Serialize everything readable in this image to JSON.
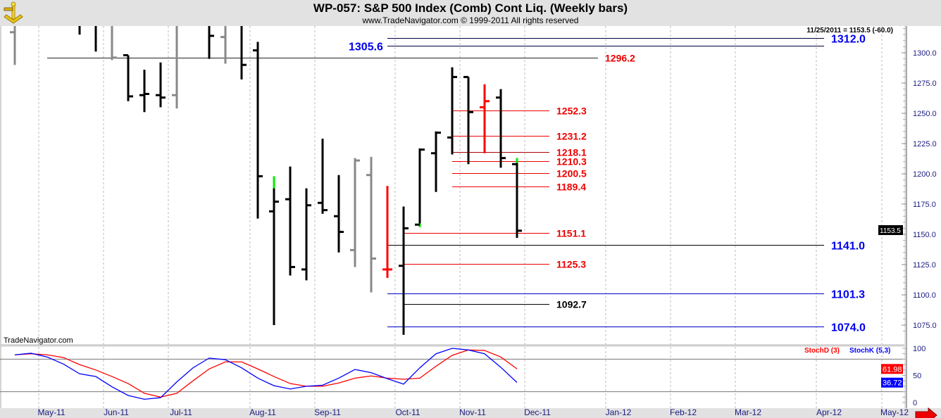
{
  "header": {
    "title": "WP-057:  S&P 500 Index (Comb) Cont Liq.  (Weekly bars)",
    "subtitle": "www.TradeNavigator.com © 1999-2011 All rights reserved",
    "last_bar_readout": "11/25/2011 = 1153.5 (-60.0)",
    "watermark": "TradeNavigator.com"
  },
  "chart_data": [
    {
      "type": "ohlc",
      "title": "S&P 500 Index (Comb) Cont Liq. (Weekly bars)",
      "ylim": [
        1062,
        1322
      ],
      "y_ticks": [
        "1300.0",
        "1275.0",
        "1250.0",
        "1225.0",
        "1200.0",
        "1175.0",
        "1150.0",
        "1125.0",
        "1100.0",
        "1075.0"
      ],
      "y_tick_values": [
        1300,
        1275,
        1250,
        1225,
        1200,
        1175,
        1150,
        1125,
        1100,
        1075
      ],
      "x_labels": [
        "May-11",
        "Jun-11",
        "Jul-11",
        "Aug-11",
        "Sep-11",
        "Oct-11",
        "Nov-11",
        "Dec-11",
        "Jan-12",
        "Feb-12",
        "Mar-12",
        "Apr-12",
        "May-12"
      ],
      "last_price": "1153.5",
      "bars": [
        {
          "week": 0,
          "o": 1317,
          "h": 1330,
          "l": 1290,
          "c": null,
          "color": "gray"
        },
        {
          "week": 4,
          "o": null,
          "h": 1330,
          "l": 1315,
          "c": null,
          "color": "black"
        },
        {
          "week": 5,
          "o": null,
          "h": 1330,
          "l": 1301,
          "c": null,
          "color": "black"
        },
        {
          "week": 6,
          "o": null,
          "h": 1330,
          "l": 1294,
          "c": 1296,
          "color": "gray"
        },
        {
          "week": 7,
          "o": 1298,
          "h": 1298,
          "l": 1260,
          "c": 1264,
          "color": "black"
        },
        {
          "week": 8,
          "o": 1265,
          "h": 1286,
          "l": 1251,
          "c": 1266,
          "color": "black"
        },
        {
          "week": 9,
          "o": 1265,
          "h": 1292,
          "l": 1255,
          "c": 1263,
          "color": "black"
        },
        {
          "week": 10,
          "o": 1265,
          "h": 1330,
          "l": 1254,
          "c": null,
          "color": "gray"
        },
        {
          "week": 12,
          "o": null,
          "h": 1330,
          "l": 1295,
          "c": 1314,
          "color": "black"
        },
        {
          "week": 13,
          "o": 1313,
          "h": 1330,
          "l": 1291,
          "c": null,
          "color": "gray"
        },
        {
          "week": 14,
          "o": null,
          "h": 1330,
          "l": 1278,
          "c": 1290,
          "color": "black"
        },
        {
          "week": 15,
          "o": 1302,
          "h": 1309,
          "l": 1163,
          "c": 1198,
          "color": "black"
        },
        {
          "week": 16,
          "o": 1169,
          "h": 1198,
          "l": 1075,
          "c": 1177,
          "color": "black",
          "hl_top": 1188
        },
        {
          "week": 17,
          "o": 1179,
          "h": 1206,
          "l": 1116,
          "c": 1123,
          "color": "black"
        },
        {
          "week": 18,
          "o": 1121,
          "h": 1188,
          "l": 1112,
          "c": 1174,
          "color": "black"
        },
        {
          "week": 19,
          "o": 1176,
          "h": 1229,
          "l": 1167,
          "c": 1170,
          "color": "black"
        },
        {
          "week": 20,
          "o": 1165,
          "h": 1199,
          "l": 1135,
          "c": 1152,
          "color": "black"
        },
        {
          "week": 21,
          "o": 1137,
          "h": 1213,
          "l": 1123,
          "c": 1211,
          "color": "gray"
        },
        {
          "week": 22,
          "o": 1199,
          "h": 1214,
          "l": 1102,
          "c": 1130,
          "color": "gray"
        },
        {
          "week": 23,
          "o": 1121,
          "h": 1190,
          "l": 1114,
          "c": 1121,
          "color": "red"
        },
        {
          "week": 24,
          "o": 1124,
          "h": 1173,
          "l": 1067,
          "c": 1155,
          "color": "black"
        },
        {
          "week": 25,
          "o": 1158,
          "h": 1221,
          "l": 1156,
          "c": 1220,
          "color": "black",
          "hl_bottom": 1159
        },
        {
          "week": 26,
          "o": 1217,
          "h": 1235,
          "l": 1185,
          "c": 1234,
          "color": "black"
        },
        {
          "week": 27,
          "o": 1230,
          "h": 1288,
          "l": 1216,
          "c": 1280,
          "color": "black"
        },
        {
          "week": 28,
          "o": 1280,
          "h": 1280,
          "l": 1208,
          "c": 1251,
          "color": "black"
        },
        {
          "week": 29,
          "o": 1255,
          "h": 1274,
          "l": 1217,
          "c": 1260,
          "color": "red"
        },
        {
          "week": 30,
          "o": 1263,
          "h": 1270,
          "l": 1205,
          "c": 1213,
          "color": "black"
        },
        {
          "week": 31,
          "o": 1208,
          "h": 1213,
          "l": 1147,
          "c": 1153,
          "color": "black",
          "hl_top": 1209
        }
      ],
      "levels": [
        {
          "price": 1312.0,
          "label": "1312.0",
          "color": "#0000ee",
          "line_color": "#000044",
          "from_week": 23,
          "to_week": 50,
          "label_side": "right"
        },
        {
          "price": 1305.6,
          "label": "1305.6",
          "color": "#0000ee",
          "line_color": "#000044",
          "from_week": 23,
          "to_week": 50,
          "label_side": "left"
        },
        {
          "price": 1296.2,
          "label": "1296.2",
          "color": "#ee0000",
          "line_color": "#222222",
          "from_week": 2,
          "to_week": 36,
          "label_side": "end"
        },
        {
          "price": 1252.3,
          "label": "1252.3",
          "color": "#ee0000",
          "line_color": "#ee0000",
          "from_week": 27,
          "to_week": 33,
          "label_side": "end"
        },
        {
          "price": 1231.2,
          "label": "1231.2",
          "color": "#ee0000",
          "line_color": "#ee0000",
          "from_week": 27,
          "to_week": 33,
          "label_side": "end"
        },
        {
          "price": 1218.1,
          "label": "1218.1",
          "color": "#ee0000",
          "line_color": "#aa0000",
          "from_week": 27,
          "to_week": 33,
          "label_side": "end"
        },
        {
          "price": 1210.3,
          "label": "1210.3",
          "color": "#ee0000",
          "line_color": "#ee0000",
          "from_week": 27,
          "to_week": 33,
          "label_side": "end"
        },
        {
          "price": 1200.5,
          "label": "1200.5",
          "color": "#ee0000",
          "line_color": "#ee0000",
          "from_week": 27,
          "to_week": 33,
          "label_side": "end"
        },
        {
          "price": 1189.4,
          "label": "1189.4",
          "color": "#ee0000",
          "line_color": "#ee0000",
          "from_week": 27,
          "to_week": 33,
          "label_side": "end"
        },
        {
          "price": 1151.1,
          "label": "1151.1",
          "color": "#ee0000",
          "line_color": "#ee0000",
          "from_week": 24,
          "to_week": 33,
          "label_side": "end"
        },
        {
          "price": 1141.0,
          "label": "1141.0",
          "color": "#0000ee",
          "line_color": "#000000",
          "from_week": 23,
          "to_week": 50,
          "label_side": "right"
        },
        {
          "price": 1125.3,
          "label": "1125.3",
          "color": "#ee0000",
          "line_color": "#ee0000",
          "from_week": 24,
          "to_week": 33,
          "label_side": "end"
        },
        {
          "price": 1101.3,
          "label": "1101.3",
          "color": "#0000ee",
          "line_color": "#0000cc",
          "from_week": 23,
          "to_week": 50,
          "label_side": "right"
        },
        {
          "price": 1092.7,
          "label": "1092.7",
          "color": "#000000",
          "line_color": "#000000",
          "from_week": 24,
          "to_week": 33,
          "label_side": "end"
        },
        {
          "price": 1074.0,
          "label": "1074.0",
          "color": "#0000ee",
          "line_color": "#0000cc",
          "from_week": 23,
          "to_week": 50,
          "label_side": "right"
        }
      ]
    },
    {
      "type": "line",
      "title": "Stochastic",
      "ylim": [
        0,
        100
      ],
      "y_ticks": [
        "100",
        "50",
        "0"
      ],
      "y_tick_values": [
        100,
        50,
        0
      ],
      "reference_lines": [
        80,
        20
      ],
      "series": [
        {
          "name": "StochD (3)",
          "color": "#ff0000",
          "last_value": "61.98",
          "values": [
            88,
            90,
            88,
            83,
            70,
            60,
            48,
            35,
            17,
            10,
            17,
            40,
            62,
            75,
            75,
            62,
            48,
            35,
            30,
            30,
            36,
            45,
            49,
            45,
            43,
            45,
            67,
            87,
            97,
            96,
            84,
            62
          ]
        },
        {
          "name": "StochK (5,3)",
          "color": "#0000ff",
          "last_value": "36.72",
          "values": [
            88,
            91,
            84,
            71,
            53,
            48,
            29,
            13,
            6,
            9,
            38,
            64,
            82,
            79,
            64,
            45,
            31,
            25,
            30,
            32,
            45,
            61,
            55,
            44,
            34,
            64,
            90,
            100,
            97,
            90,
            65,
            37
          ]
        }
      ]
    }
  ]
}
